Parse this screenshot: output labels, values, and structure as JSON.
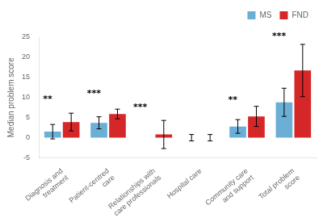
{
  "chart_data": {
    "type": "bar",
    "categories": [
      "Diagnosis and\ntreatment",
      "Patient-centred\ncare",
      "Relationships with\ncare professionals",
      "Hospital care",
      "Community care\nand support",
      "Total problem\nscore"
    ],
    "series": [
      {
        "name": "MS",
        "color": "#6baed6",
        "values": [
          1.5,
          3.7,
          0.0,
          0.0,
          2.8,
          8.8
        ],
        "errors": [
          1.8,
          1.5,
          0.0,
          0.8,
          1.7,
          3.5
        ]
      },
      {
        "name": "FND",
        "color": "#d62728",
        "values": [
          3.9,
          5.9,
          0.8,
          0.0,
          5.3,
          16.7
        ],
        "errors": [
          2.2,
          1.2,
          3.5,
          0.8,
          2.5,
          6.5
        ]
      }
    ],
    "annotations": [
      {
        "text": "**",
        "category": 0,
        "y": 8.5
      },
      {
        "text": "***",
        "category": 1,
        "y": 9.8
      },
      {
        "text": "***",
        "category": 2,
        "y": 6.5
      },
      {
        "text": "**",
        "category": 4,
        "y": 8.2
      },
      {
        "text": "***",
        "category": 5,
        "y": 24.0
      }
    ],
    "ylabel": "Median problem score",
    "ylim": [
      -5,
      25
    ],
    "yticks": [
      -5,
      0,
      5,
      10,
      15,
      20,
      25
    ],
    "grid": false,
    "legend": "upper right"
  }
}
